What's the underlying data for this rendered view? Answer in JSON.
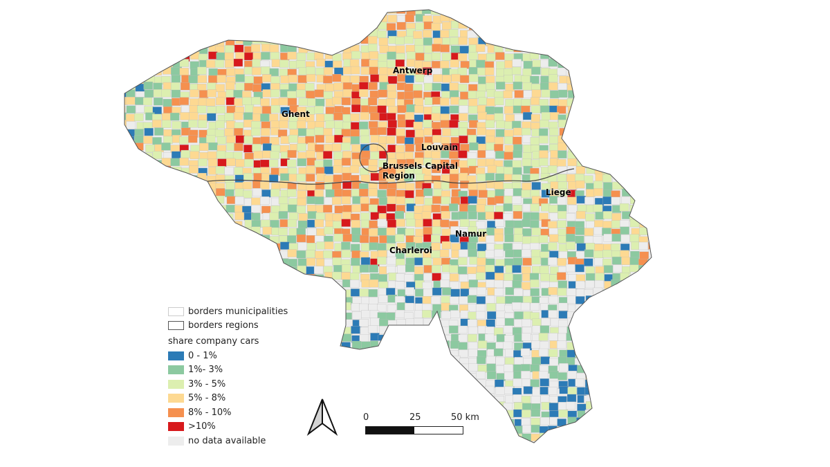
{
  "map": {
    "cities": [
      {
        "name": "Antwerp"
      },
      {
        "name": "Ghent"
      },
      {
        "name": "Louvain"
      },
      {
        "name": "Brussels Capital Region"
      },
      {
        "name": "Liege"
      },
      {
        "name": "Namur"
      },
      {
        "name": "Charleroi"
      }
    ]
  },
  "legend": {
    "borders": [
      {
        "label": "borders municipalities",
        "stroke": "#cccccc"
      },
      {
        "label": "borders regions",
        "stroke": "#555555"
      }
    ],
    "title": "share company cars",
    "classes": [
      {
        "label": "0 - 1%",
        "color": "#2c7bb6"
      },
      {
        "label": "1%- 3%",
        "color": "#8cc9a0"
      },
      {
        "label": "3% - 5%",
        "color": "#dcefb0"
      },
      {
        "label": "5% - 8%",
        "color": "#fdd992"
      },
      {
        "label": "8% - 10%",
        "color": "#f5904f"
      },
      {
        "label": ">10%",
        "color": "#d7191c"
      },
      {
        "label": "no data available",
        "color": "#ededed"
      }
    ]
  },
  "scale_bar": {
    "labels": [
      "0",
      "25",
      "50 km"
    ]
  },
  "north_arrow": {
    "icon": "north-arrow-icon"
  }
}
